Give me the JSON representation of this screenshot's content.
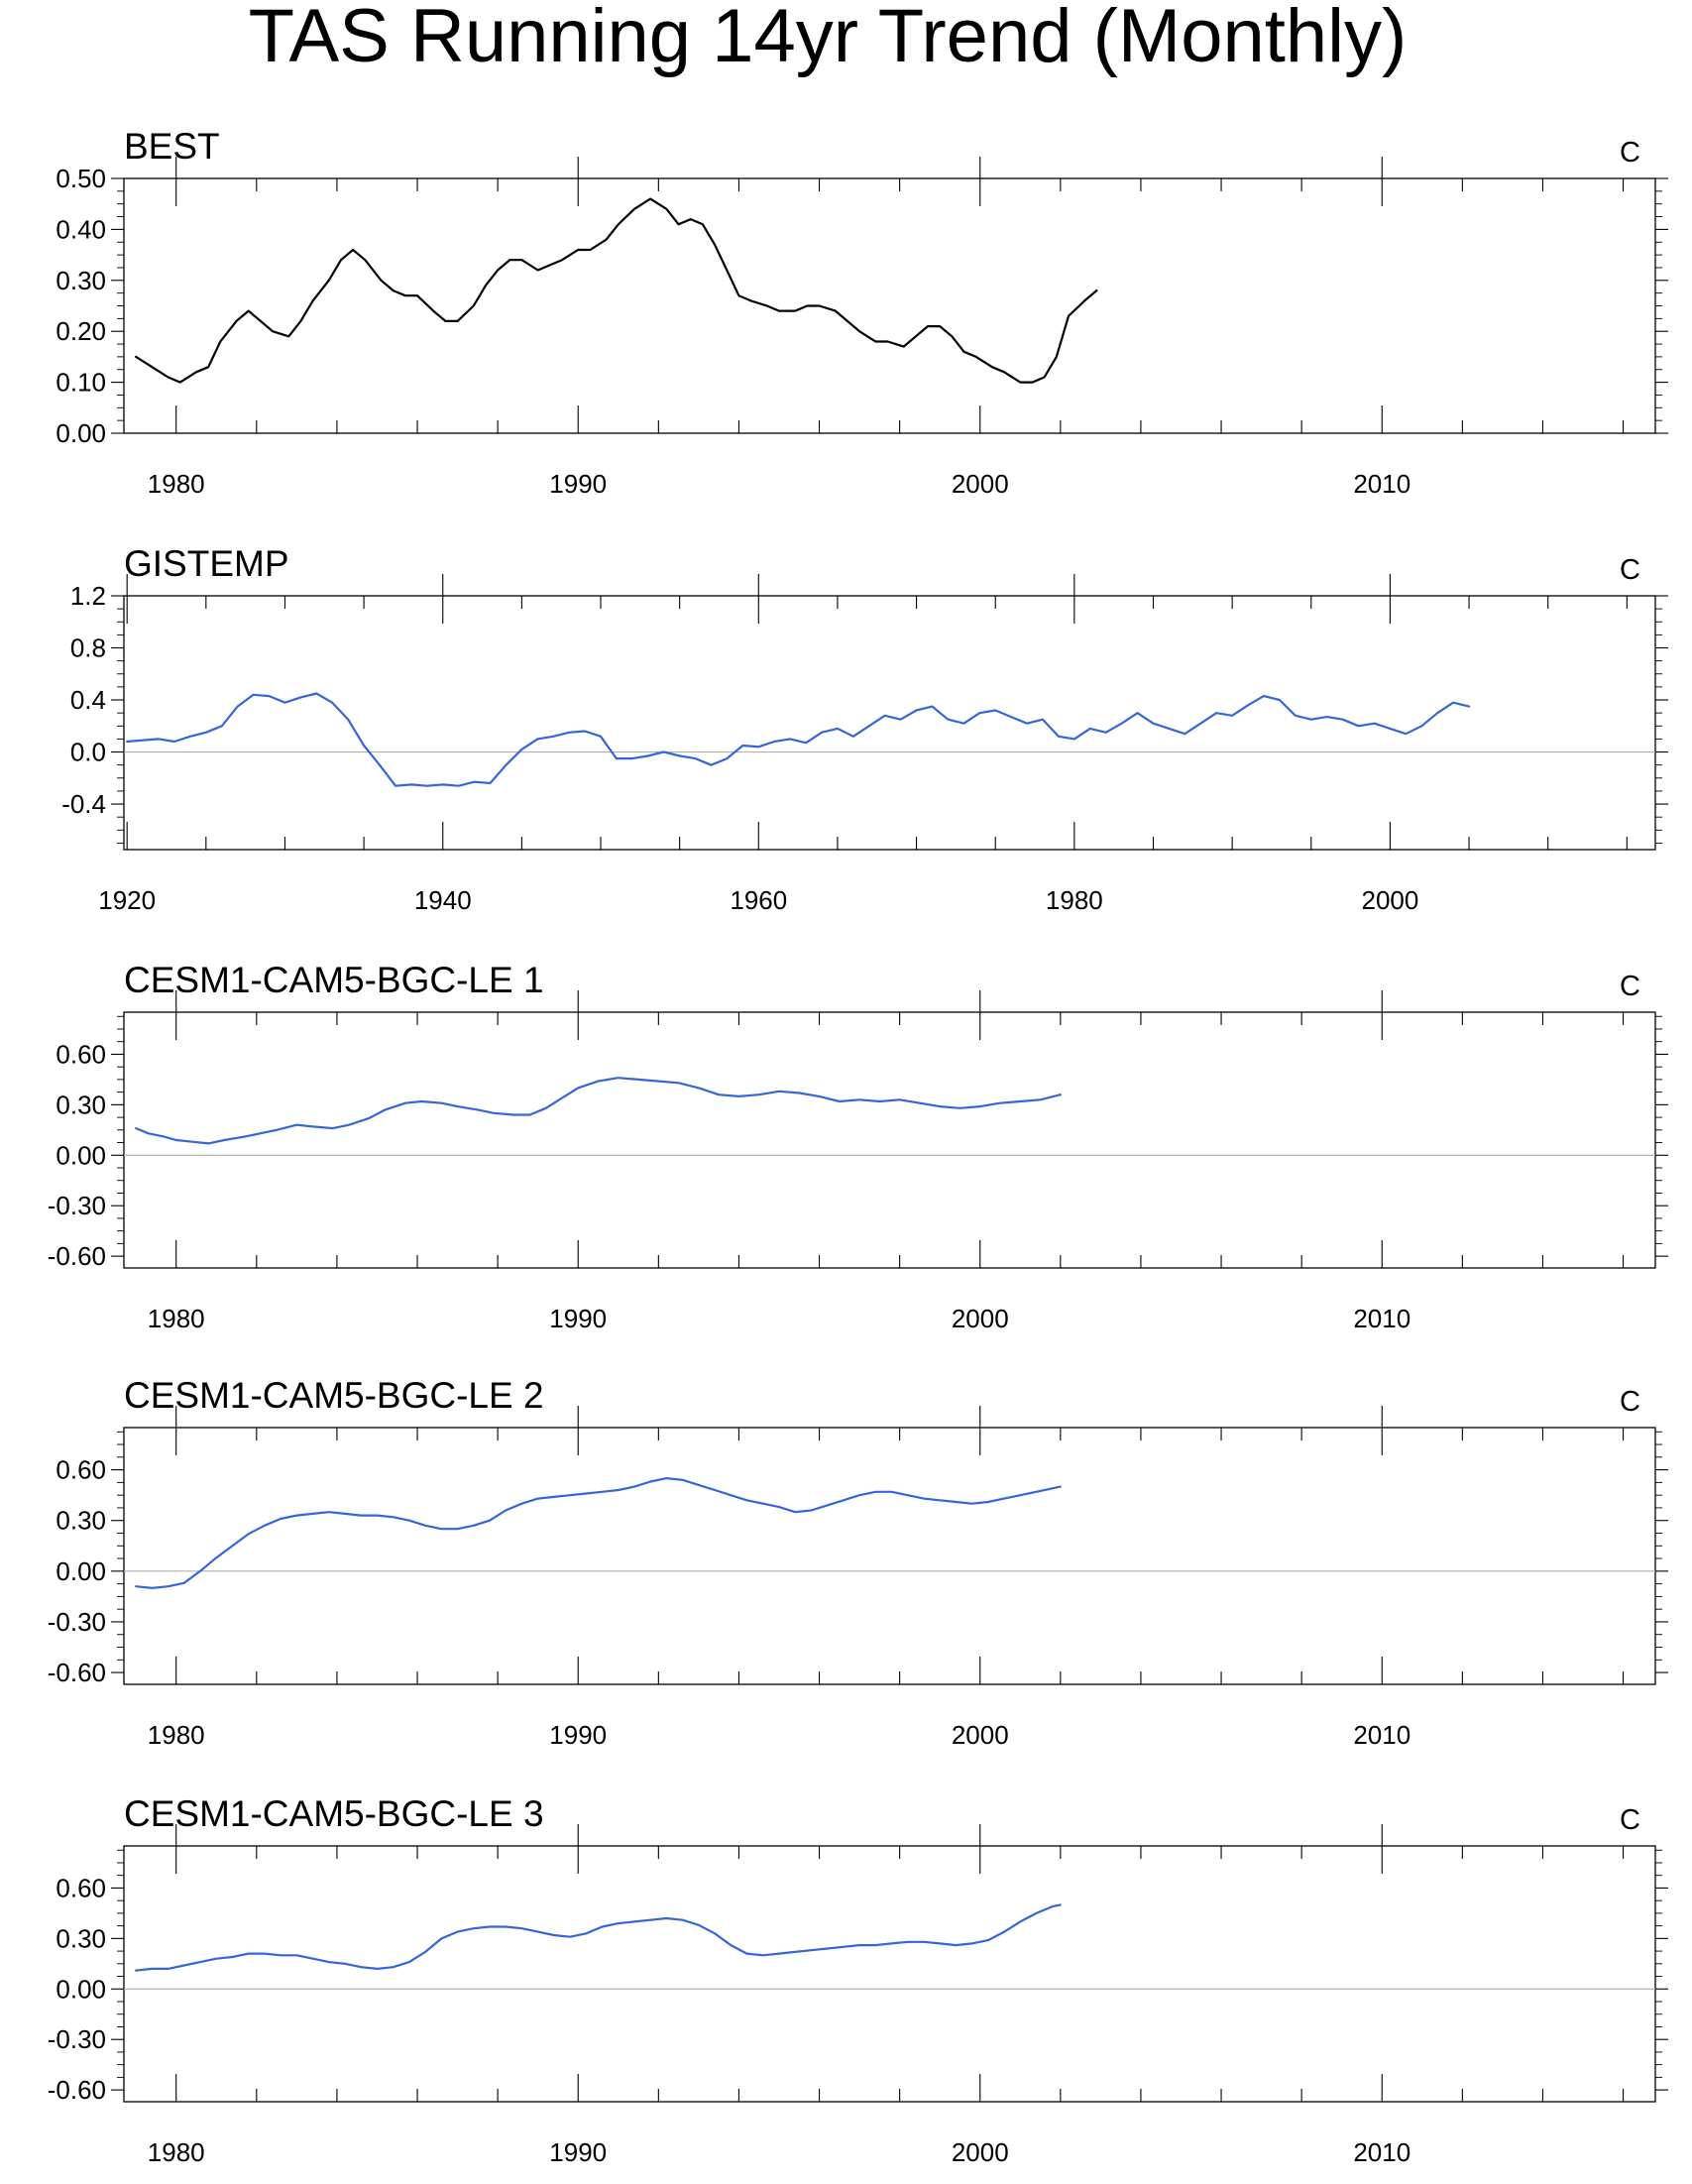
{
  "figure": {
    "title": "TAS Running 14yr Trend (Monthly)"
  },
  "chart_data": [
    {
      "type": "line",
      "title": "BEST",
      "units": "C",
      "color": "#000000",
      "xlim": [
        1978.7,
        2016.8
      ],
      "ylim": [
        0.0,
        0.5
      ],
      "xticks": [
        1980,
        1990,
        2000,
        2010
      ],
      "xtick_labels": [
        "1980",
        "1990",
        "2000",
        "2010"
      ],
      "yticks": [
        0.0,
        0.1,
        0.2,
        0.3,
        0.4,
        0.5
      ],
      "ytick_labels": [
        "0.00",
        "0.10",
        "0.20",
        "0.30",
        "0.40",
        "0.50"
      ],
      "zero_line": false,
      "x": [
        1979.0,
        1979.4,
        1979.8,
        1980.1,
        1980.5,
        1980.8,
        1981.1,
        1981.5,
        1981.8,
        1982.1,
        1982.4,
        1982.8,
        1983.1,
        1983.4,
        1983.8,
        1984.1,
        1984.4,
        1984.7,
        1985.1,
        1985.4,
        1985.7,
        1986.0,
        1986.4,
        1986.7,
        1987.0,
        1987.4,
        1987.7,
        1988.0,
        1988.3,
        1988.6,
        1989.0,
        1989.3,
        1989.6,
        1990.0,
        1990.3,
        1990.7,
        1991.0,
        1991.4,
        1991.8,
        1992.2,
        1992.5,
        1992.8,
        1993.1,
        1993.4,
        1993.7,
        1994.0,
        1994.3,
        1994.7,
        1995.0,
        1995.4,
        1995.7,
        1996.0,
        1996.4,
        1996.7,
        1997.0,
        1997.4,
        1997.7,
        1998.1,
        1998.4,
        1998.7,
        1999.0,
        1999.3,
        1999.6,
        1999.9,
        2000.3,
        2000.6,
        2001.0,
        2001.3,
        2001.6,
        2001.9,
        2002.2,
        2002.6,
        2002.9
      ],
      "y": [
        0.15,
        0.13,
        0.11,
        0.1,
        0.12,
        0.13,
        0.18,
        0.22,
        0.24,
        0.22,
        0.2,
        0.19,
        0.22,
        0.26,
        0.3,
        0.34,
        0.36,
        0.34,
        0.3,
        0.28,
        0.27,
        0.27,
        0.24,
        0.22,
        0.22,
        0.25,
        0.29,
        0.32,
        0.34,
        0.34,
        0.32,
        0.33,
        0.34,
        0.36,
        0.36,
        0.38,
        0.41,
        0.44,
        0.46,
        0.44,
        0.41,
        0.42,
        0.41,
        0.37,
        0.32,
        0.27,
        0.26,
        0.25,
        0.24,
        0.24,
        0.25,
        0.25,
        0.24,
        0.22,
        0.2,
        0.18,
        0.18,
        0.17,
        0.19,
        0.21,
        0.21,
        0.19,
        0.16,
        0.15,
        0.13,
        0.12,
        0.1,
        0.1,
        0.11,
        0.15,
        0.23,
        0.26,
        0.28
      ]
    },
    {
      "type": "line",
      "title": "GISTEMP",
      "units": "C",
      "color": "#3566d8",
      "xlim": [
        1919.8,
        2016.8
      ],
      "ylim": [
        -0.75,
        1.2
      ],
      "xticks": [
        1920,
        1940,
        1960,
        1980,
        2000
      ],
      "xtick_labels": [
        "1920",
        "1940",
        "1960",
        "1980",
        "2000"
      ],
      "yticks": [
        -0.4,
        0.0,
        0.4,
        0.8,
        1.2
      ],
      "ytick_labels": [
        "-0.4",
        "0.0",
        "0.4",
        "0.8",
        "1.2"
      ],
      "zero_line": true,
      "x": [
        1920,
        1922,
        1923,
        1924,
        1925,
        1926,
        1927,
        1928,
        1929,
        1930,
        1931,
        1932,
        1933,
        1934,
        1935,
        1936,
        1937,
        1938,
        1939,
        1940,
        1941,
        1942,
        1943,
        1944,
        1945,
        1946,
        1947,
        1948,
        1949,
        1950,
        1951,
        1952,
        1953,
        1954,
        1955,
        1956,
        1957,
        1958,
        1959,
        1960,
        1961,
        1962,
        1963,
        1964,
        1965,
        1966,
        1967,
        1968,
        1969,
        1970,
        1971,
        1972,
        1973,
        1974,
        1975,
        1976,
        1977,
        1978,
        1979,
        1980,
        1981,
        1982,
        1983,
        1984,
        1985,
        1986,
        1987,
        1988,
        1989,
        1990,
        1991,
        1992,
        1993,
        1994,
        1995,
        1996,
        1997,
        1998,
        1999,
        2000,
        2001,
        2002,
        2003,
        2004,
        2005
      ],
      "y": [
        0.08,
        0.1,
        0.08,
        0.12,
        0.15,
        0.2,
        0.35,
        0.44,
        0.43,
        0.38,
        0.42,
        0.45,
        0.38,
        0.25,
        0.05,
        -0.1,
        -0.26,
        -0.25,
        -0.26,
        -0.25,
        -0.26,
        -0.23,
        -0.24,
        -0.1,
        0.02,
        0.1,
        0.12,
        0.15,
        0.16,
        0.12,
        -0.05,
        -0.05,
        -0.03,
        0.0,
        -0.03,
        -0.05,
        -0.1,
        -0.05,
        0.05,
        0.04,
        0.08,
        0.1,
        0.07,
        0.15,
        0.18,
        0.12,
        0.2,
        0.28,
        0.25,
        0.32,
        0.35,
        0.25,
        0.22,
        0.3,
        0.32,
        0.27,
        0.22,
        0.25,
        0.12,
        0.1,
        0.18,
        0.15,
        0.22,
        0.3,
        0.22,
        0.18,
        0.14,
        0.22,
        0.3,
        0.28,
        0.36,
        0.43,
        0.4,
        0.28,
        0.25,
        0.27,
        0.25,
        0.2,
        0.22,
        0.18,
        0.14,
        0.2,
        0.3,
        0.38,
        0.35
      ]
    },
    {
      "type": "line",
      "title": "CESM1-CAM5-BGC-LE 1",
      "units": "C",
      "color": "#3566d8",
      "xlim": [
        1978.7,
        2016.8
      ],
      "ylim": [
        -0.67,
        0.85
      ],
      "xticks": [
        1980,
        1990,
        2000,
        2010
      ],
      "xtick_labels": [
        "1980",
        "1990",
        "2000",
        "2010"
      ],
      "yticks": [
        -0.6,
        -0.3,
        0.0,
        0.3,
        0.6
      ],
      "ytick_labels": [
        "-0.60",
        "-0.30",
        "0.00",
        "0.30",
        "0.60"
      ],
      "zero_line": true,
      "x": [
        1979.0,
        1979.3,
        1979.7,
        1980.0,
        1980.4,
        1980.8,
        1981.2,
        1981.7,
        1982.1,
        1982.5,
        1983.0,
        1983.4,
        1983.9,
        1984.3,
        1984.8,
        1985.2,
        1985.7,
        1986.1,
        1986.6,
        1987.0,
        1987.5,
        1987.9,
        1988.4,
        1988.8,
        1989.2,
        1989.6,
        1990.0,
        1990.5,
        1991.0,
        1991.5,
        1992.0,
        1992.5,
        1993.0,
        1993.5,
        1994.0,
        1994.5,
        1995.0,
        1995.5,
        1996.0,
        1996.5,
        1997.0,
        1997.5,
        1998.0,
        1998.5,
        1999.0,
        1999.5,
        2000.0,
        2000.5,
        2001.0,
        2001.5,
        2002.0
      ],
      "y": [
        0.16,
        0.13,
        0.11,
        0.09,
        0.08,
        0.07,
        0.09,
        0.11,
        0.13,
        0.15,
        0.18,
        0.17,
        0.16,
        0.18,
        0.22,
        0.27,
        0.31,
        0.32,
        0.31,
        0.29,
        0.27,
        0.25,
        0.24,
        0.24,
        0.28,
        0.34,
        0.4,
        0.44,
        0.46,
        0.45,
        0.44,
        0.43,
        0.4,
        0.36,
        0.35,
        0.36,
        0.38,
        0.37,
        0.35,
        0.32,
        0.33,
        0.32,
        0.33,
        0.31,
        0.29,
        0.28,
        0.29,
        0.31,
        0.32,
        0.33,
        0.36
      ]
    },
    {
      "type": "line",
      "title": "CESM1-CAM5-BGC-LE 2",
      "units": "C",
      "color": "#3566d8",
      "xlim": [
        1978.7,
        2016.8
      ],
      "ylim": [
        -0.67,
        0.85
      ],
      "xticks": [
        1980,
        1990,
        2000,
        2010
      ],
      "xtick_labels": [
        "1980",
        "1990",
        "2000",
        "2010"
      ],
      "yticks": [
        -0.6,
        -0.3,
        0.0,
        0.3,
        0.6
      ],
      "ytick_labels": [
        "-0.60",
        "-0.30",
        "0.00",
        "0.30",
        "0.60"
      ],
      "zero_line": true,
      "x": [
        1979.0,
        1979.4,
        1979.8,
        1980.2,
        1980.6,
        1981.0,
        1981.4,
        1981.8,
        1982.2,
        1982.6,
        1983.0,
        1983.4,
        1983.8,
        1984.2,
        1984.6,
        1985.0,
        1985.4,
        1985.8,
        1986.2,
        1986.6,
        1987.0,
        1987.4,
        1987.8,
        1988.2,
        1988.6,
        1989.0,
        1989.4,
        1989.8,
        1990.2,
        1990.6,
        1991.0,
        1991.4,
        1991.8,
        1992.2,
        1992.6,
        1993.0,
        1993.4,
        1993.8,
        1994.2,
        1994.6,
        1995.0,
        1995.4,
        1995.8,
        1996.2,
        1996.6,
        1997.0,
        1997.4,
        1997.8,
        1998.2,
        1998.6,
        1999.0,
        1999.4,
        1999.8,
        2000.2,
        2000.6,
        2001.0,
        2001.4,
        2001.8,
        2002.0
      ],
      "y": [
        -0.09,
        -0.1,
        -0.09,
        -0.07,
        0.0,
        0.08,
        0.15,
        0.22,
        0.27,
        0.31,
        0.33,
        0.34,
        0.35,
        0.34,
        0.33,
        0.33,
        0.32,
        0.3,
        0.27,
        0.25,
        0.25,
        0.27,
        0.3,
        0.36,
        0.4,
        0.43,
        0.44,
        0.45,
        0.46,
        0.47,
        0.48,
        0.5,
        0.53,
        0.55,
        0.54,
        0.51,
        0.48,
        0.45,
        0.42,
        0.4,
        0.38,
        0.35,
        0.36,
        0.39,
        0.42,
        0.45,
        0.47,
        0.47,
        0.45,
        0.43,
        0.42,
        0.41,
        0.4,
        0.41,
        0.43,
        0.45,
        0.47,
        0.49,
        0.5
      ]
    },
    {
      "type": "line",
      "title": "CESM1-CAM5-BGC-LE 3",
      "units": "C",
      "color": "#3566d8",
      "xlim": [
        1978.7,
        2016.8
      ],
      "ylim": [
        -0.67,
        0.85
      ],
      "xticks": [
        1980,
        1990,
        2000,
        2010
      ],
      "xtick_labels": [
        "1980",
        "1990",
        "2000",
        "2010"
      ],
      "yticks": [
        -0.6,
        -0.3,
        0.0,
        0.3,
        0.6
      ],
      "ytick_labels": [
        "-0.60",
        "-0.30",
        "0.00",
        "0.30",
        "0.60"
      ],
      "zero_line": true,
      "x": [
        1979.0,
        1979.4,
        1979.8,
        1980.2,
        1980.6,
        1981.0,
        1981.4,
        1981.8,
        1982.2,
        1982.6,
        1983.0,
        1983.4,
        1983.8,
        1984.2,
        1984.6,
        1985.0,
        1985.4,
        1985.8,
        1986.2,
        1986.6,
        1987.0,
        1987.4,
        1987.8,
        1988.2,
        1988.6,
        1989.0,
        1989.4,
        1989.8,
        1990.2,
        1990.6,
        1991.0,
        1991.4,
        1991.8,
        1992.2,
        1992.6,
        1993.0,
        1993.4,
        1993.8,
        1994.2,
        1994.6,
        1995.0,
        1995.4,
        1995.8,
        1996.2,
        1996.6,
        1997.0,
        1997.4,
        1997.8,
        1998.2,
        1998.6,
        1999.0,
        1999.4,
        1999.8,
        2000.2,
        2000.6,
        2001.0,
        2001.4,
        2001.8,
        2002.0
      ],
      "y": [
        0.11,
        0.12,
        0.12,
        0.14,
        0.16,
        0.18,
        0.19,
        0.21,
        0.21,
        0.2,
        0.2,
        0.18,
        0.16,
        0.15,
        0.13,
        0.12,
        0.13,
        0.16,
        0.22,
        0.3,
        0.34,
        0.36,
        0.37,
        0.37,
        0.36,
        0.34,
        0.32,
        0.31,
        0.33,
        0.37,
        0.39,
        0.4,
        0.41,
        0.42,
        0.41,
        0.38,
        0.33,
        0.26,
        0.21,
        0.2,
        0.21,
        0.22,
        0.23,
        0.24,
        0.25,
        0.26,
        0.26,
        0.27,
        0.28,
        0.28,
        0.27,
        0.26,
        0.27,
        0.29,
        0.34,
        0.4,
        0.45,
        0.49,
        0.5
      ]
    }
  ]
}
